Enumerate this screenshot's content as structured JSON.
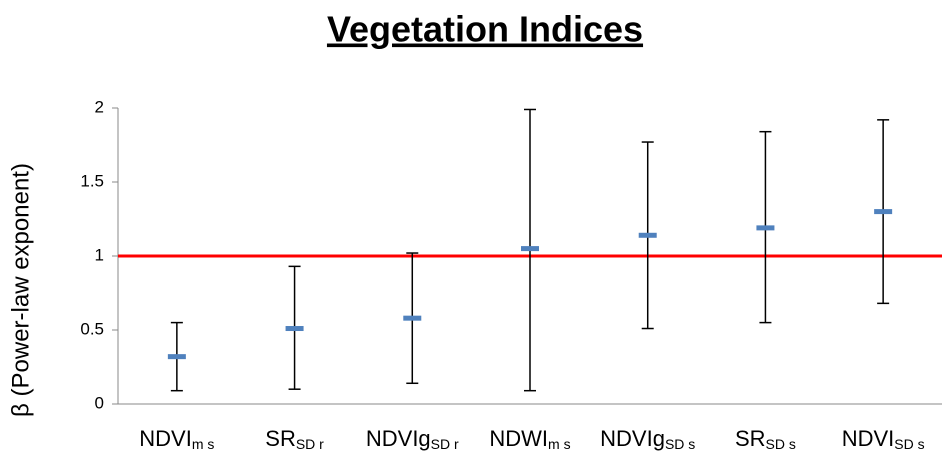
{
  "chart_data": {
    "type": "errorbar",
    "title": "Vegetation Indices",
    "y_label": "β (Power-law exponent)",
    "categories": [
      "NDVI",
      "SR",
      "NDVIg",
      "NDWI",
      "NDVIg",
      "SR",
      "NDVI"
    ],
    "category_subscripts": [
      "m s",
      "SD r",
      "SD r",
      "m s",
      "SD s",
      "SD s",
      "SD s"
    ],
    "values": [
      0.32,
      0.51,
      0.58,
      1.05,
      1.14,
      1.19,
      1.3
    ],
    "lower": [
      0.09,
      0.1,
      0.14,
      0.09,
      0.51,
      0.55,
      0.68
    ],
    "upper": [
      0.55,
      0.93,
      1.02,
      1.99,
      1.77,
      1.84,
      1.92
    ],
    "color": "#4f81bd",
    "error_color": "#000000",
    "reference_line": 1,
    "reference_color": "#ff0000",
    "ylim": [
      0,
      2
    ],
    "yticks": [
      0,
      0.5,
      1,
      1.5,
      2
    ]
  }
}
